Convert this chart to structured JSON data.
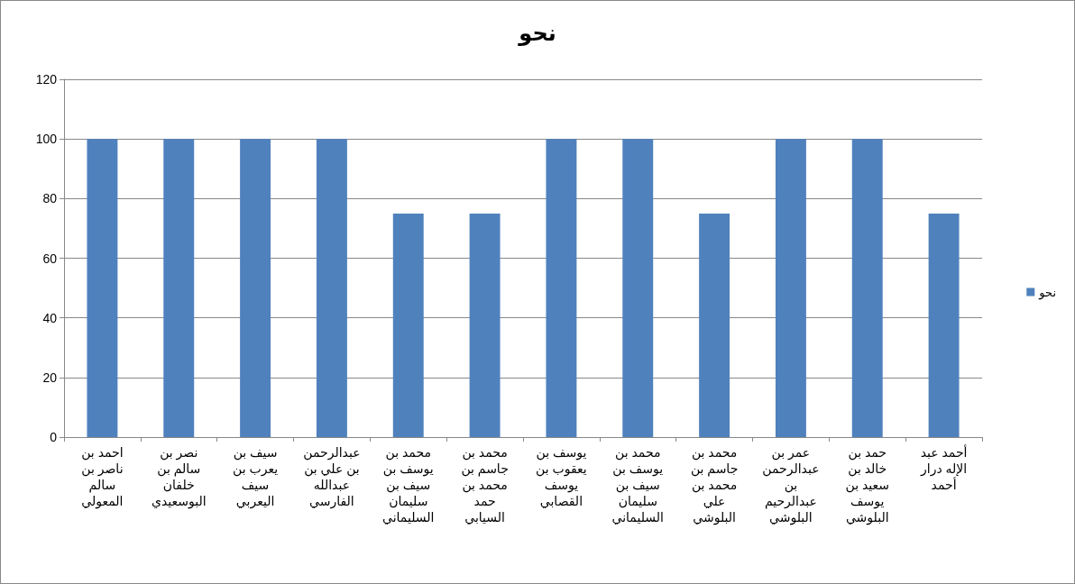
{
  "chart_data": {
    "type": "bar",
    "title": "نحو",
    "categories": [
      "احمد بن ناصر بن سالم المعولي",
      "نصر بن سالم بن خلفان البوسعيدي",
      "سيف بن يعرب بن سيف اليعربي",
      "عبدالرحمن بن علي بن عبدالله الفارسي",
      "محمد بن يوسف بن سيف بن سليمان السليماني",
      "محمد بن جاسم بن محمد بن حمد السيابي",
      "يوسف بن يعقوب بن يوسف القصابي",
      "محمد بن يوسف بن سيف بن سليمان السليماني",
      "محمد بن جاسم بن محمد بن علي البلوشي",
      "عمر بن عبدالرحمن بن عبدالرحيم البلوشي",
      "حمد بن خالد بن سعيد بن يوسف البلوشي",
      "أحمد عبد الإله درار أحمد"
    ],
    "series": [
      {
        "name": "نحو",
        "color": "#4f81bd",
        "values": [
          100,
          100,
          100,
          100,
          75,
          75,
          100,
          100,
          75,
          100,
          100,
          75
        ]
      }
    ],
    "ylim": [
      0,
      120
    ],
    "yticks": [
      0,
      20,
      40,
      60,
      80,
      100,
      120
    ],
    "grid": "y",
    "legend": "right"
  }
}
